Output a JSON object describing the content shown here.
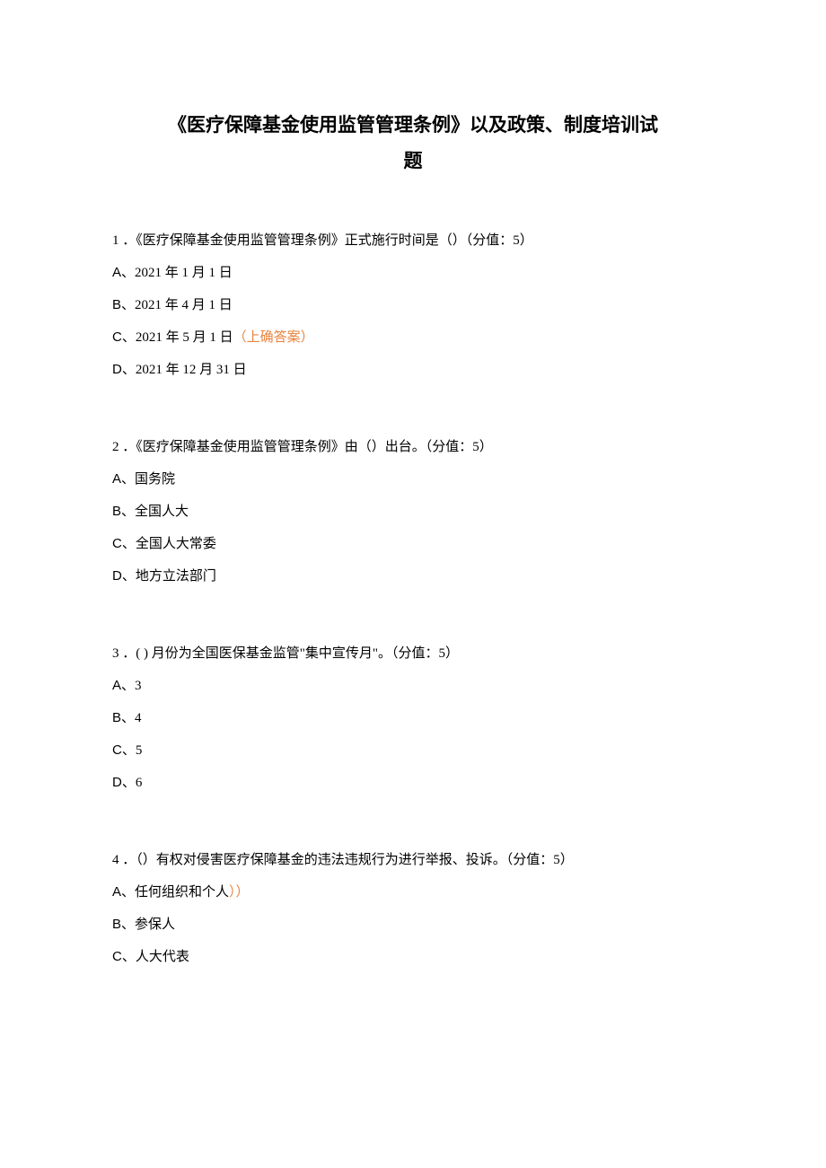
{
  "title": {
    "line1": "《医疗保障基金使用监管管理条例》以及政策、制度培训试",
    "line2": "题"
  },
  "questions": [
    {
      "number": "1",
      "text": "．《医疗保障基金使用监管管理条例》正式施行时间是（）（分值：5）",
      "options": [
        {
          "label": "A、",
          "text": "2021 年 1 月 1 日",
          "correct": false
        },
        {
          "label": "B、",
          "text": "2021 年 4 月 1 日",
          "correct": false
        },
        {
          "label": "C、",
          "text": "2021 年 5 月 1 日",
          "correct": true,
          "correctText": "（上确答案）"
        },
        {
          "label": "D、",
          "text": "2021 年 12 月 31 日",
          "correct": false
        }
      ]
    },
    {
      "number": "2",
      "text": "．《医疗保障基金使用监管管理条例》由（）出台。（分值：5）",
      "options": [
        {
          "label": "A、",
          "text": "国务院",
          "correct": false
        },
        {
          "label": "B、",
          "text": "全国人大",
          "correct": false
        },
        {
          "label": "C、",
          "text": "全国人大常委",
          "correct": false
        },
        {
          "label": "D、",
          "text": "地方立法部门",
          "correct": false
        }
      ]
    },
    {
      "number": "3",
      "text": "．( ) 月份为全国医保基金监管\"集中宣传月\"。（分值：5）",
      "options": [
        {
          "label": "A、",
          "text": "3",
          "correct": false
        },
        {
          "label": "B、",
          "text": "4",
          "correct": false
        },
        {
          "label": "C、",
          "text": "5",
          "correct": false
        },
        {
          "label": "D、",
          "text": "6",
          "correct": false
        }
      ]
    },
    {
      "number": "4",
      "text": "．（）有权对侵害医疗保障基金的违法违规行为进行举报、投诉。（分值：5）",
      "options": [
        {
          "label": "A、",
          "text": "任何组织和个人",
          "correct": true,
          "correctText": "））"
        },
        {
          "label": "B、",
          "text": "参保人",
          "correct": false
        },
        {
          "label": "C、",
          "text": "人大代表",
          "correct": false
        }
      ]
    }
  ],
  "colors": {
    "text": "#000000",
    "correctAnswer": "#e8833f",
    "background": "#ffffff"
  }
}
